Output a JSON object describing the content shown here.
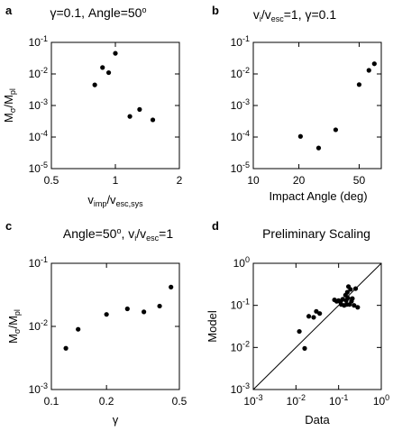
{
  "chart_data": [
    {
      "panel": "a",
      "type": "scatter",
      "title": "γ=0.1, Angle=50",
      "title_sup": "o",
      "xlabel": "v",
      "xlabel_sub": "imp",
      "xlabel_mid": "/v",
      "xlabel_sub2": "esc,sys",
      "ylabel": "M",
      "ylabel_sub": "σ",
      "ylabel_mid": "/M",
      "ylabel_sub2": "pl",
      "xscale": "log",
      "yscale": "log",
      "xlim": [
        0.5,
        2
      ],
      "ylim": [
        1e-05,
        0.1
      ],
      "x_ticks": [
        {
          "value": 0.5,
          "label": "0.5"
        },
        {
          "value": 1,
          "label": "1"
        },
        {
          "value": 2,
          "label": "2"
        }
      ],
      "y_ticks": [
        {
          "value": 1e-05,
          "label": "10",
          "exp": "-5"
        },
        {
          "value": 0.0001,
          "label": "10",
          "exp": "-4"
        },
        {
          "value": 0.001,
          "label": "10",
          "exp": "-3"
        },
        {
          "value": 0.01,
          "label": "10",
          "exp": "-2"
        },
        {
          "value": 0.1,
          "label": "10",
          "exp": "-1"
        }
      ],
      "points": [
        {
          "x": 0.8,
          "y": 0.0045
        },
        {
          "x": 0.87,
          "y": 0.016
        },
        {
          "x": 0.93,
          "y": 0.011
        },
        {
          "x": 1.0,
          "y": 0.045
        },
        {
          "x": 1.17,
          "y": 0.00045
        },
        {
          "x": 1.3,
          "y": 0.00075
        },
        {
          "x": 1.5,
          "y": 0.00035
        }
      ]
    },
    {
      "panel": "b",
      "type": "scatter",
      "title": "v",
      "title_sub": "i",
      "title_mid": "/v",
      "title_sub2": "esc",
      "title_end": "=1, γ=0.1",
      "xlabel": "Impact Angle (deg)",
      "xscale": "log",
      "yscale": "log",
      "xlim": [
        10,
        70
      ],
      "ylim": [
        1e-05,
        0.1
      ],
      "x_ticks": [
        {
          "value": 10,
          "label": "10"
        },
        {
          "value": 20,
          "label": "20"
        },
        {
          "value": 50,
          "label": "50"
        }
      ],
      "y_ticks": [
        {
          "value": 1e-05,
          "label": "10",
          "exp": "-5"
        },
        {
          "value": 0.0001,
          "label": "10",
          "exp": "-4"
        },
        {
          "value": 0.001,
          "label": "10",
          "exp": "-3"
        },
        {
          "value": 0.01,
          "label": "10",
          "exp": "-2"
        },
        {
          "value": 0.1,
          "label": "10",
          "exp": "-1"
        }
      ],
      "points": [
        {
          "x": 20.5,
          "y": 0.000105
        },
        {
          "x": 27,
          "y": 4.5e-05
        },
        {
          "x": 35,
          "y": 0.00017
        },
        {
          "x": 50,
          "y": 0.0046
        },
        {
          "x": 58,
          "y": 0.013
        },
        {
          "x": 63,
          "y": 0.021
        }
      ]
    },
    {
      "panel": "c",
      "type": "scatter",
      "title": "Angle=50",
      "title_sup": "o",
      "title_mid": ", v",
      "title_sub": "i",
      "title_mid2": "/v",
      "title_sub2": "esc",
      "title_end": "=1",
      "xlabel": "γ",
      "ylabel": "M",
      "ylabel_sub": "σ",
      "ylabel_mid": "/M",
      "ylabel_sub2": "pl",
      "xscale": "log",
      "yscale": "log",
      "xlim": [
        0.1,
        0.5
      ],
      "ylim": [
        0.001,
        0.1
      ],
      "x_ticks": [
        {
          "value": 0.1,
          "label": "0.1"
        },
        {
          "value": 0.2,
          "label": "0.2"
        },
        {
          "value": 0.5,
          "label": "0.5"
        }
      ],
      "y_ticks": [
        {
          "value": 0.001,
          "label": "10",
          "exp": "-3"
        },
        {
          "value": 0.01,
          "label": "10",
          "exp": "-2"
        },
        {
          "value": 0.1,
          "label": "10",
          "exp": "-1"
        }
      ],
      "points": [
        {
          "x": 0.12,
          "y": 0.0045
        },
        {
          "x": 0.14,
          "y": 0.009
        },
        {
          "x": 0.2,
          "y": 0.0155
        },
        {
          "x": 0.26,
          "y": 0.019
        },
        {
          "x": 0.32,
          "y": 0.017
        },
        {
          "x": 0.39,
          "y": 0.021
        },
        {
          "x": 0.45,
          "y": 0.042
        }
      ]
    },
    {
      "panel": "d",
      "type": "scatter",
      "title": "Preliminary Scaling",
      "xlabel": "Data",
      "ylabel": "Model",
      "xscale": "log",
      "yscale": "log",
      "xlim": [
        0.001,
        1
      ],
      "ylim": [
        0.001,
        1
      ],
      "x_ticks": [
        {
          "value": 0.001,
          "label": "10",
          "exp": "-3"
        },
        {
          "value": 0.01,
          "label": "10",
          "exp": "-2"
        },
        {
          "value": 0.1,
          "label": "10",
          "exp": "-1"
        },
        {
          "value": 1,
          "label": "10",
          "exp": "0"
        }
      ],
      "y_ticks": [
        {
          "value": 0.001,
          "label": "10",
          "exp": "-3"
        },
        {
          "value": 0.01,
          "label": "10",
          "exp": "-2"
        },
        {
          "value": 0.1,
          "label": "10",
          "exp": "-1"
        },
        {
          "value": 1,
          "label": "10",
          "exp": "0"
        }
      ],
      "reference_line": [
        [
          0.001,
          0.001
        ],
        [
          1,
          1
        ]
      ],
      "points": [
        {
          "x": 0.012,
          "y": 0.024
        },
        {
          "x": 0.016,
          "y": 0.0095
        },
        {
          "x": 0.02,
          "y": 0.055
        },
        {
          "x": 0.026,
          "y": 0.052
        },
        {
          "x": 0.03,
          "y": 0.072
        },
        {
          "x": 0.036,
          "y": 0.064
        },
        {
          "x": 0.08,
          "y": 0.135
        },
        {
          "x": 0.09,
          "y": 0.125
        },
        {
          "x": 0.1,
          "y": 0.13
        },
        {
          "x": 0.11,
          "y": 0.12
        },
        {
          "x": 0.115,
          "y": 0.105
        },
        {
          "x": 0.125,
          "y": 0.14
        },
        {
          "x": 0.135,
          "y": 0.1
        },
        {
          "x": 0.145,
          "y": 0.175
        },
        {
          "x": 0.15,
          "y": 0.13
        },
        {
          "x": 0.155,
          "y": 0.105
        },
        {
          "x": 0.16,
          "y": 0.205
        },
        {
          "x": 0.165,
          "y": 0.15
        },
        {
          "x": 0.17,
          "y": 0.28
        },
        {
          "x": 0.18,
          "y": 0.105
        },
        {
          "x": 0.19,
          "y": 0.24
        },
        {
          "x": 0.2,
          "y": 0.125
        },
        {
          "x": 0.21,
          "y": 0.145
        },
        {
          "x": 0.23,
          "y": 0.1
        },
        {
          "x": 0.25,
          "y": 0.25
        },
        {
          "x": 0.28,
          "y": 0.09
        }
      ]
    }
  ]
}
